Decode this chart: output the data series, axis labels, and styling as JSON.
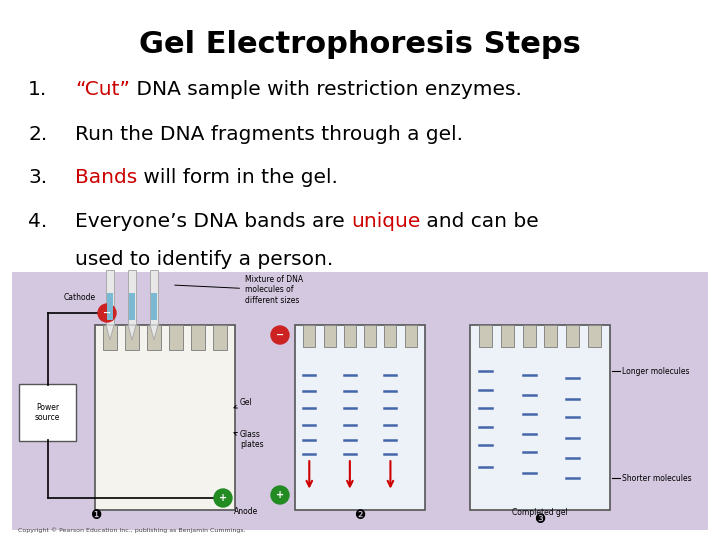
{
  "title": "Gel Electrophoresis Steps",
  "title_fontsize": 22,
  "title_fontweight": "bold",
  "background_color": "#ffffff",
  "text_color": "#000000",
  "red_color": "#cc0000",
  "steps": [
    {
      "number": "1.",
      "parts": [
        {
          "text": "“Cut”",
          "color": "#cc0000"
        },
        {
          "text": " DNA sample with restriction enzymes.",
          "color": "#000000"
        }
      ]
    },
    {
      "number": "2.",
      "parts": [
        {
          "text": "Run the DNA fragments through a gel.",
          "color": "#000000"
        }
      ]
    },
    {
      "number": "3.",
      "parts": [
        {
          "text": "Bands",
          "color": "#cc0000"
        },
        {
          "text": " will form in the gel.",
          "color": "#000000"
        }
      ]
    },
    {
      "number": "4.",
      "line1": [
        {
          "text": "Everyone’s DNA bands are ",
          "color": "#000000"
        },
        {
          "text": "unique",
          "color": "#cc0000"
        },
        {
          "text": " and can be",
          "color": "#000000"
        }
      ],
      "line2": "used to identify a person."
    }
  ],
  "diagram_bg": "#d4c8e0",
  "copyright": "Copyright © Pearson Education Inc., publishing as Benjamin Cummings."
}
